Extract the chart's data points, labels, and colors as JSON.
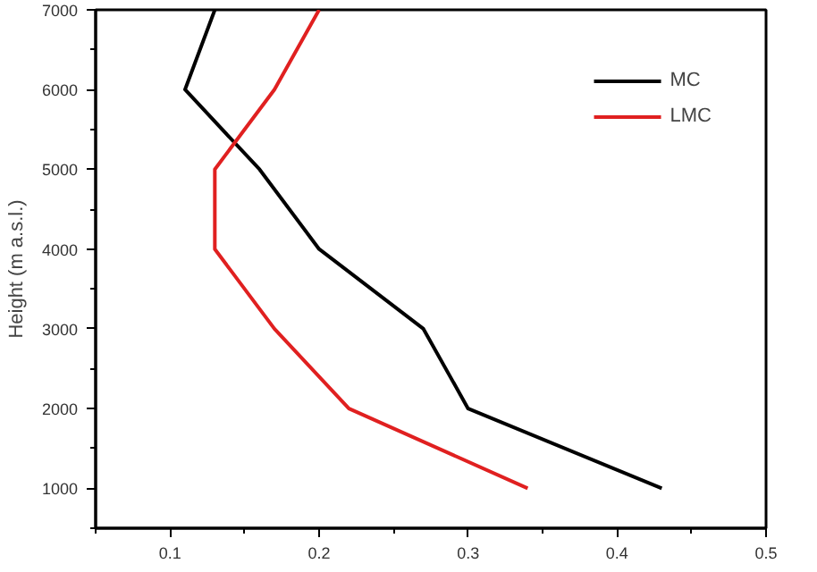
{
  "chart_data": {
    "type": "line",
    "ylabel": "Height (m a.s.l.)",
    "series": [
      {
        "name": "MC",
        "color": "#000000",
        "x": [
          0.43,
          0.3,
          0.27,
          0.2,
          0.16,
          0.11,
          0.13
        ],
        "values": [
          1000,
          2000,
          3000,
          4000,
          5000,
          6000,
          7000
        ]
      },
      {
        "name": "LMC",
        "color": "#e02020",
        "x": [
          0.34,
          0.22,
          0.17,
          0.13,
          0.13,
          0.17,
          0.2
        ],
        "values": [
          1000,
          2000,
          3000,
          4000,
          5000,
          6000,
          7000
        ]
      }
    ],
    "xlim": [
      0.05,
      0.5
    ],
    "xticks": [
      0.1,
      0.2,
      0.3,
      0.4,
      0.5
    ],
    "ylim": [
      500,
      7000
    ],
    "yticks": [
      1000,
      2000,
      3000,
      4000,
      5000,
      6000,
      7000
    ],
    "grid": false,
    "legend": "top right",
    "marker": "none",
    "line_style": "solid"
  }
}
